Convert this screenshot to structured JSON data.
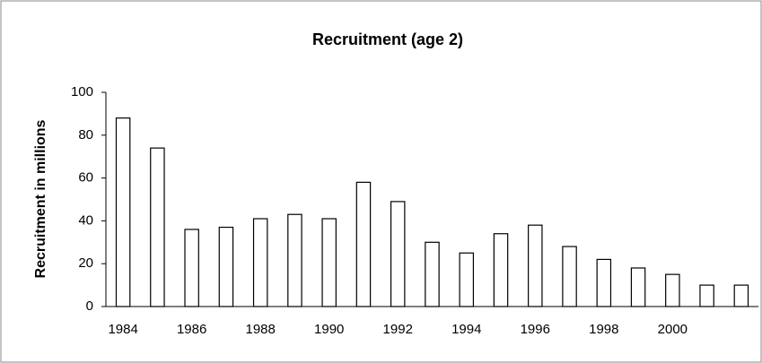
{
  "chart_data": {
    "type": "bar",
    "title": "Recruitment (age 2)",
    "y_label": "Recruitment in millions",
    "categories": [
      "1984",
      null,
      "1986",
      null,
      "1988",
      null,
      "1990",
      null,
      "1992",
      null,
      "1994",
      null,
      "1996",
      null,
      "1998",
      null,
      "2000",
      null,
      null
    ],
    "values": [
      88,
      74,
      36,
      37,
      41,
      43,
      41,
      58,
      49,
      30,
      25,
      34,
      38,
      28,
      22,
      18,
      15,
      10,
      10
    ],
    "color": "#ffffff",
    "ylim": [
      0,
      100
    ],
    "yticks": [
      0,
      20,
      40,
      60,
      80,
      100
    ],
    "grid": false
  }
}
